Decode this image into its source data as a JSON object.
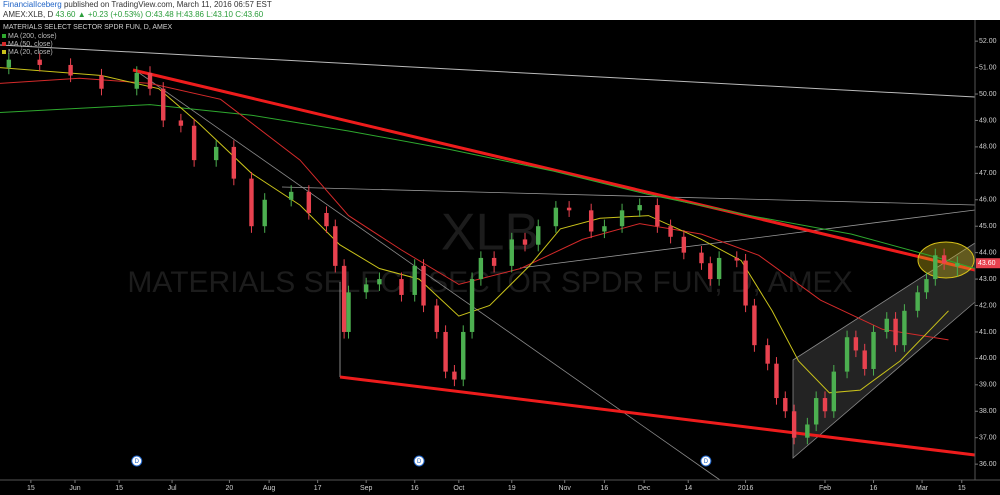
{
  "header": {
    "author": "FinancialIceberg",
    "published": "published on TradingView.com, March 11, 2016 06:57 EST",
    "symbol": "AMEX:XLB, D",
    "price": "43.60",
    "change": "▲ +0.23 (+0.53%)",
    "ohlc": [
      "O:43.48",
      "H:43.86",
      "L:43.10",
      "C:43.60"
    ]
  },
  "chart_data": {
    "type": "candlestick",
    "title": "MATERIALS SELECT SECTOR SPDR FUN, D, AMEX",
    "watermark": "XLB",
    "up_color": "#4caf50",
    "down_color": "#e8424f",
    "x": [
      2,
      9,
      16,
      23,
      31,
      34,
      37,
      41,
      44,
      49,
      53,
      57,
      60,
      66,
      70,
      74,
      76,
      78,
      79,
      83,
      86,
      91,
      94,
      96,
      99,
      101,
      103,
      105,
      107,
      109,
      112,
      116,
      119,
      122,
      126,
      129,
      134,
      137,
      141,
      145,
      149,
      152,
      155,
      159,
      161,
      163,
      167,
      169,
      171,
      174,
      176,
      178,
      180,
      183,
      185,
      187,
      189,
      192,
      194,
      196,
      198,
      201,
      203,
      205,
      208,
      210,
      212,
      214,
      217
    ],
    "open": [
      51.0,
      51.3,
      51.1,
      50.7,
      50.2,
      50.8,
      50.2,
      49.0,
      48.8,
      47.5,
      48.0,
      46.8,
      45.0,
      46.0,
      46.3,
      45.5,
      45.0,
      43.5,
      41.0,
      42.5,
      42.8,
      43.0,
      42.4,
      43.5,
      42.0,
      41.0,
      39.5,
      39.2,
      41.0,
      43.0,
      43.8,
      43.5,
      44.5,
      44.3,
      45.0,
      45.7,
      45.6,
      44.8,
      45.0,
      45.6,
      45.8,
      45.0,
      44.6,
      44.0,
      43.6,
      43.0,
      43.8,
      43.7,
      42.0,
      40.5,
      39.8,
      38.5,
      38.0,
      37.0,
      37.5,
      38.5,
      38.0,
      39.5,
      40.8,
      40.3,
      39.6,
      41.0,
      41.5,
      40.5,
      41.8,
      42.5,
      43.0,
      43.9,
      43.48
    ],
    "high": [
      51.55,
      51.55,
      51.35,
      50.95,
      51.05,
      51.05,
      50.45,
      49.25,
      49.05,
      48.25,
      48.25,
      47.05,
      46.25,
      46.55,
      46.55,
      45.75,
      45.25,
      43.75,
      42.75,
      43.05,
      43.25,
      43.25,
      43.75,
      43.75,
      42.25,
      41.25,
      39.75,
      41.25,
      43.25,
      44.05,
      44.05,
      44.75,
      44.75,
      45.25,
      45.95,
      45.95,
      45.85,
      45.25,
      45.85,
      46.05,
      46.05,
      45.25,
      44.85,
      44.25,
      43.85,
      44.05,
      44.05,
      43.95,
      42.25,
      40.75,
      40.05,
      38.75,
      38.25,
      37.75,
      38.75,
      38.75,
      39.75,
      41.05,
      41.05,
      40.55,
      41.25,
      41.75,
      41.75,
      42.05,
      42.75,
      43.25,
      44.15,
      44.15,
      43.86
    ],
    "low": [
      50.75,
      50.85,
      50.45,
      49.95,
      49.95,
      49.95,
      48.75,
      48.55,
      47.25,
      47.25,
      46.55,
      44.75,
      44.75,
      45.75,
      45.25,
      44.75,
      43.25,
      40.75,
      40.75,
      42.25,
      42.55,
      42.15,
      42.15,
      41.75,
      40.75,
      39.25,
      38.95,
      38.95,
      40.75,
      42.75,
      43.25,
      43.25,
      44.05,
      44.05,
      44.75,
      45.35,
      44.55,
      44.55,
      44.75,
      45.35,
      44.75,
      44.35,
      43.75,
      43.35,
      42.75,
      42.75,
      43.45,
      41.75,
      40.25,
      39.55,
      38.25,
      37.75,
      36.75,
      36.75,
      37.25,
      37.75,
      37.75,
      39.25,
      40.05,
      39.35,
      39.35,
      40.75,
      40.25,
      40.25,
      41.55,
      42.25,
      42.75,
      43.35,
      43.1
    ],
    "close": [
      51.3,
      51.1,
      50.7,
      50.2,
      50.8,
      50.2,
      49.0,
      48.8,
      47.5,
      48.0,
      46.8,
      45.0,
      46.0,
      46.3,
      45.5,
      45.0,
      43.5,
      41.0,
      42.5,
      42.8,
      43.0,
      42.4,
      43.5,
      42.0,
      41.0,
      39.5,
      39.2,
      41.0,
      43.0,
      43.8,
      43.5,
      44.5,
      44.3,
      45.0,
      45.7,
      45.6,
      44.8,
      45.0,
      45.6,
      45.8,
      45.0,
      44.6,
      44.0,
      43.6,
      43.0,
      43.8,
      43.7,
      42.0,
      40.5,
      39.8,
      38.5,
      38.0,
      37.0,
      37.5,
      38.5,
      38.0,
      39.5,
      40.8,
      40.3,
      39.6,
      41.0,
      41.5,
      40.5,
      41.8,
      42.5,
      43.0,
      43.9,
      43.6,
      43.6
    ],
    "series": [
      {
        "name": "MA (200, close)",
        "color": "#2ea82e",
        "x": [
          0,
          34,
          57,
          79,
          102,
          125,
          147,
          170,
          193,
          215,
          221
        ],
        "values": [
          49.3,
          49.6,
          49.2,
          48.6,
          47.9,
          47.1,
          46.2,
          45.4,
          44.7,
          43.7,
          43.4
        ]
      },
      {
        "name": "MA (50, close)",
        "color": "#d42a2a",
        "x": [
          0,
          18,
          34,
          50,
          68,
          79,
          91,
          104,
          118,
          132,
          145,
          159,
          172,
          186,
          200,
          215
        ],
        "values": [
          50.4,
          50.6,
          50.4,
          49.8,
          47.5,
          45.4,
          44.1,
          42.8,
          43.4,
          44.5,
          45.1,
          44.7,
          43.9,
          42.2,
          41.1,
          40.7
        ]
      },
      {
        "name": "MA (20, close)",
        "color": "#c9c21a",
        "x": [
          0,
          23,
          36,
          45,
          57,
          68,
          77,
          86,
          95,
          104,
          111,
          120,
          127,
          136,
          147,
          159,
          168,
          175,
          181,
          188,
          195,
          204,
          215
        ],
        "values": [
          51.0,
          50.7,
          50.2,
          48.9,
          47.0,
          45.8,
          44.3,
          43.4,
          43.0,
          41.6,
          42.0,
          43.5,
          44.9,
          45.3,
          45.4,
          44.5,
          43.7,
          41.8,
          39.9,
          38.7,
          38.8,
          39.9,
          41.8
        ]
      }
    ],
    "xlim": [
      0,
      221
    ],
    "xticks": [
      {
        "value": 7,
        "label": "15"
      },
      {
        "value": 17,
        "label": "Jun"
      },
      {
        "value": 27,
        "label": "15"
      },
      {
        "value": 39,
        "label": "Jul"
      },
      {
        "value": 52,
        "label": "20"
      },
      {
        "value": 61,
        "label": "Aug"
      },
      {
        "value": 72,
        "label": "17"
      },
      {
        "value": 83,
        "label": "Sep"
      },
      {
        "value": 94,
        "label": "16"
      },
      {
        "value": 104,
        "label": "Oct"
      },
      {
        "value": 116,
        "label": "19"
      },
      {
        "value": 128,
        "label": "Nov"
      },
      {
        "value": 137,
        "label": "16"
      },
      {
        "value": 146,
        "label": "Dec"
      },
      {
        "value": 156,
        "label": "14"
      },
      {
        "value": 169,
        "label": "2016"
      },
      {
        "value": 187,
        "label": "Feb"
      },
      {
        "value": 198,
        "label": "16"
      },
      {
        "value": 209,
        "label": "Mar"
      },
      {
        "value": 218,
        "label": "15"
      }
    ],
    "ylim": [
      35.4,
      52.8
    ],
    "yticks": [
      {
        "value": 36,
        "label": "36.00"
      },
      {
        "value": 37,
        "label": "37.00"
      },
      {
        "value": 38,
        "label": "38.00"
      },
      {
        "value": 39,
        "label": "39.00"
      },
      {
        "value": 40,
        "label": "40.00"
      },
      {
        "value": 41,
        "label": "41.00"
      },
      {
        "value": 42,
        "label": "42.00"
      },
      {
        "value": 43,
        "label": "43.00"
      },
      {
        "value": 44,
        "label": "44.00"
      },
      {
        "value": 45,
        "label": "45.00"
      },
      {
        "value": 46,
        "label": "46.00"
      },
      {
        "value": 47,
        "label": "47.00"
      },
      {
        "value": 48,
        "label": "48.00"
      },
      {
        "value": 49,
        "label": "49.00"
      },
      {
        "value": 50,
        "label": "50.00"
      },
      {
        "value": 51,
        "label": "51.00"
      },
      {
        "value": 52,
        "label": "52.00"
      }
    ],
    "dividend_label": "D"
  }
}
